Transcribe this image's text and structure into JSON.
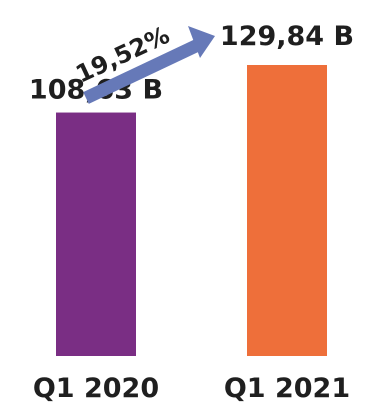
{
  "chart_data": {
    "type": "bar",
    "categories": [
      "Q1 2020",
      "Q1 2021"
    ],
    "values": [
      108.63,
      129.84
    ],
    "value_labels": [
      "108,63 B",
      "129,84 B"
    ],
    "growth_label": "19,52%",
    "colors": [
      "#7a2e84",
      "#ee6f3a"
    ],
    "arrow_color": "#6679b8",
    "ylim": [
      0,
      129.84
    ]
  }
}
